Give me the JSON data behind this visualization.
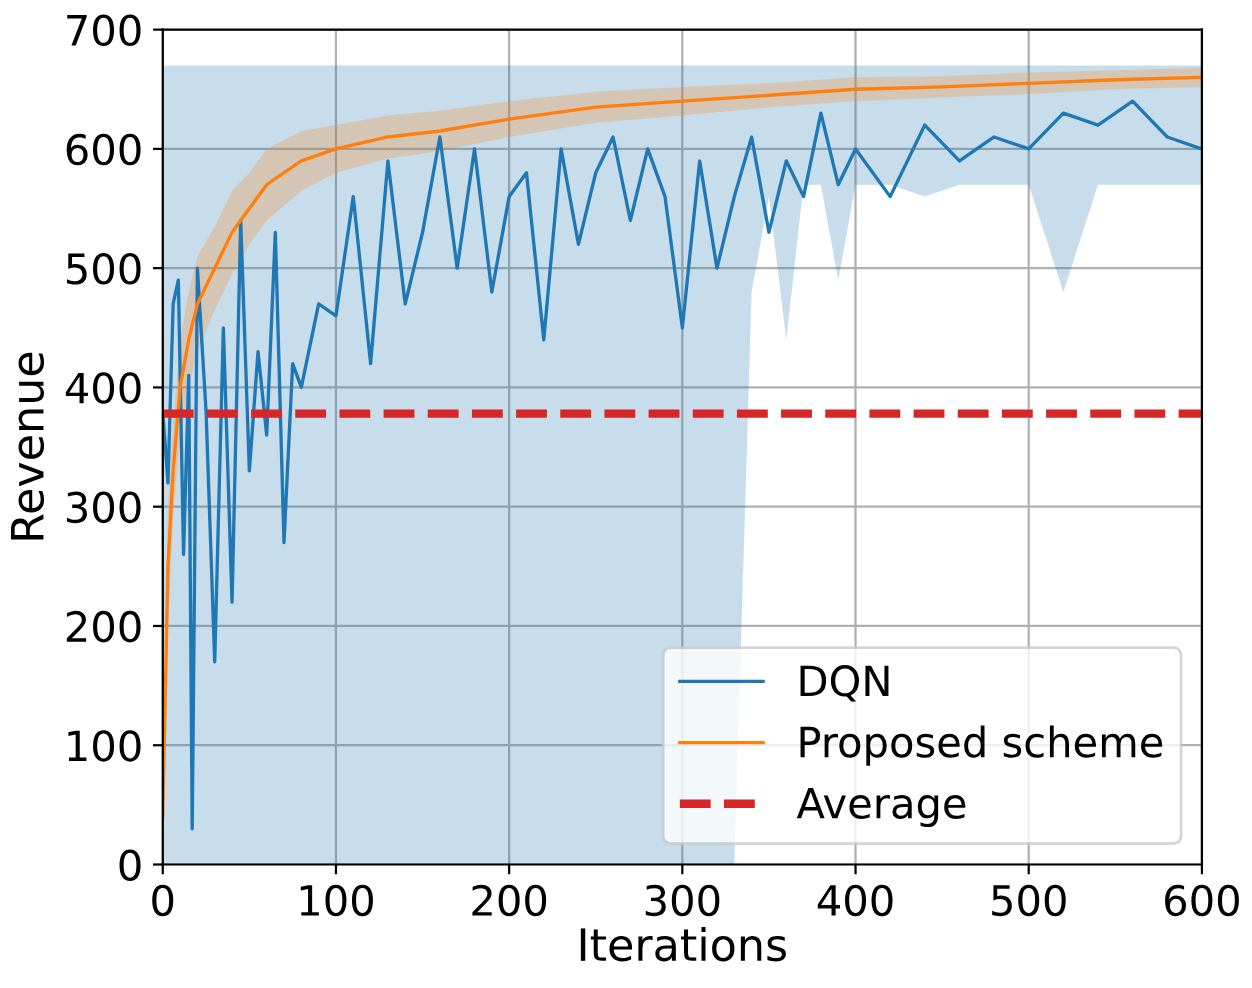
{
  "chart_data": {
    "type": "line",
    "xlabel": "Iterations",
    "ylabel": "Revenue",
    "xlim": [
      0,
      600
    ],
    "ylim": [
      0,
      700
    ],
    "xticks": [
      0,
      100,
      200,
      300,
      400,
      500,
      600
    ],
    "yticks": [
      0,
      100,
      200,
      300,
      400,
      500,
      600,
      700
    ],
    "grid": true,
    "legend": "bottom right",
    "series": [
      {
        "name": "DQN",
        "color": "#1f77b4",
        "x": [
          0,
          3,
          6,
          9,
          12,
          15,
          17,
          20,
          25,
          30,
          35,
          40,
          45,
          50,
          55,
          60,
          65,
          70,
          75,
          80,
          90,
          100,
          110,
          120,
          130,
          140,
          150,
          160,
          170,
          180,
          190,
          200,
          210,
          220,
          230,
          240,
          250,
          260,
          270,
          280,
          290,
          300,
          310,
          320,
          330,
          340,
          350,
          360,
          370,
          380,
          390,
          400,
          420,
          440,
          460,
          480,
          500,
          520,
          540,
          560,
          580,
          600
        ],
        "values": [
          380,
          320,
          470,
          490,
          260,
          410,
          30,
          500,
          380,
          170,
          450,
          220,
          540,
          330,
          430,
          360,
          530,
          270,
          420,
          400,
          470,
          460,
          560,
          420,
          590,
          470,
          530,
          610,
          500,
          600,
          480,
          560,
          580,
          440,
          600,
          520,
          580,
          610,
          540,
          600,
          560,
          450,
          590,
          500,
          560,
          610,
          530,
          590,
          560,
          630,
          570,
          600,
          560,
          620,
          590,
          610,
          600,
          630,
          620,
          640,
          610,
          600
        ],
        "lower": [
          0,
          0,
          0,
          0,
          0,
          0,
          0,
          0,
          0,
          0,
          0,
          0,
          0,
          0,
          0,
          0,
          0,
          0,
          0,
          0,
          0,
          0,
          0,
          0,
          0,
          0,
          0,
          0,
          0,
          0,
          0,
          0,
          0,
          0,
          0,
          0,
          0,
          0,
          0,
          0,
          0,
          0,
          0,
          0,
          0,
          480,
          560,
          440,
          570,
          570,
          490,
          570,
          570,
          560,
          570,
          570,
          570,
          480,
          570,
          570,
          570,
          570
        ],
        "upper": [
          670,
          670,
          670,
          670,
          670,
          670,
          670,
          670,
          670,
          670,
          670,
          670,
          670,
          670,
          670,
          670,
          670,
          670,
          670,
          670,
          670,
          670,
          670,
          670,
          670,
          670,
          670,
          670,
          670,
          670,
          670,
          670,
          670,
          670,
          670,
          670,
          670,
          670,
          670,
          670,
          670,
          670,
          670,
          670,
          670,
          670,
          670,
          670,
          670,
          670,
          670,
          670,
          670,
          670,
          670,
          670,
          670,
          670,
          670,
          670,
          670,
          670
        ]
      },
      {
        "name": "Proposed scheme",
        "color": "#ff7f0e",
        "x": [
          0,
          3,
          6,
          10,
          15,
          20,
          30,
          40,
          50,
          60,
          80,
          100,
          130,
          160,
          200,
          250,
          300,
          350,
          400,
          450,
          500,
          550,
          600
        ],
        "values": [
          40,
          250,
          330,
          400,
          440,
          470,
          500,
          530,
          550,
          570,
          590,
          600,
          610,
          615,
          625,
          635,
          640,
          645,
          650,
          652,
          655,
          658,
          660
        ],
        "lower": [
          0,
          200,
          290,
          360,
          400,
          430,
          465,
          495,
          520,
          540,
          565,
          580,
          592,
          598,
          610,
          622,
          628,
          635,
          640,
          643,
          646,
          650,
          652
        ],
        "upper": [
          80,
          300,
          370,
          440,
          480,
          510,
          535,
          565,
          580,
          600,
          615,
          620,
          628,
          632,
          640,
          648,
          652,
          655,
          660,
          661,
          664,
          666,
          668
        ]
      }
    ],
    "ref_lines": [
      {
        "axis": "y",
        "value": 378,
        "label": "Average",
        "color": "#d62728",
        "line_style": "dashed"
      }
    ]
  }
}
